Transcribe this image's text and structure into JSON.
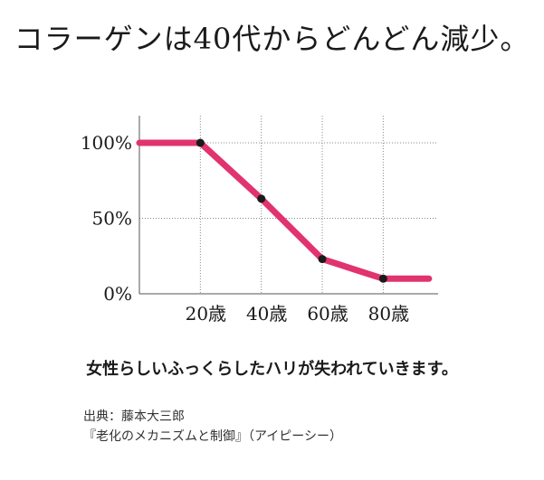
{
  "chart_data": {
    "type": "line",
    "title": "コラーゲンは40代からどんどん減少。",
    "x": [
      0,
      20,
      40,
      60,
      80,
      95
    ],
    "values": [
      100,
      100,
      63,
      23,
      10,
      10
    ],
    "markers": [
      {
        "x": 20,
        "y": 100
      },
      {
        "x": 40,
        "y": 63
      },
      {
        "x": 60,
        "y": 23
      },
      {
        "x": 80,
        "y": 10
      }
    ],
    "xticks": [
      {
        "value": 20,
        "label": "20歳"
      },
      {
        "value": 40,
        "label": "40歳"
      },
      {
        "value": 60,
        "label": "60歳"
      },
      {
        "value": 80,
        "label": "80歳"
      }
    ],
    "yticks": [
      {
        "value": 0,
        "label": "0%"
      },
      {
        "value": 50,
        "label": "50%"
      },
      {
        "value": 100,
        "label": "100%"
      }
    ],
    "xlim": [
      0,
      98
    ],
    "ylim": [
      0,
      118
    ],
    "grid": true,
    "line_color": "#e0336f",
    "marker_color": "#1a1a1a"
  },
  "caption": "女性らしいふっくらしたハリが失われていきます。",
  "source": {
    "line1": "出典：藤本大三郎",
    "line2": "『老化のメカニズムと制御』（アイピーシー）"
  }
}
